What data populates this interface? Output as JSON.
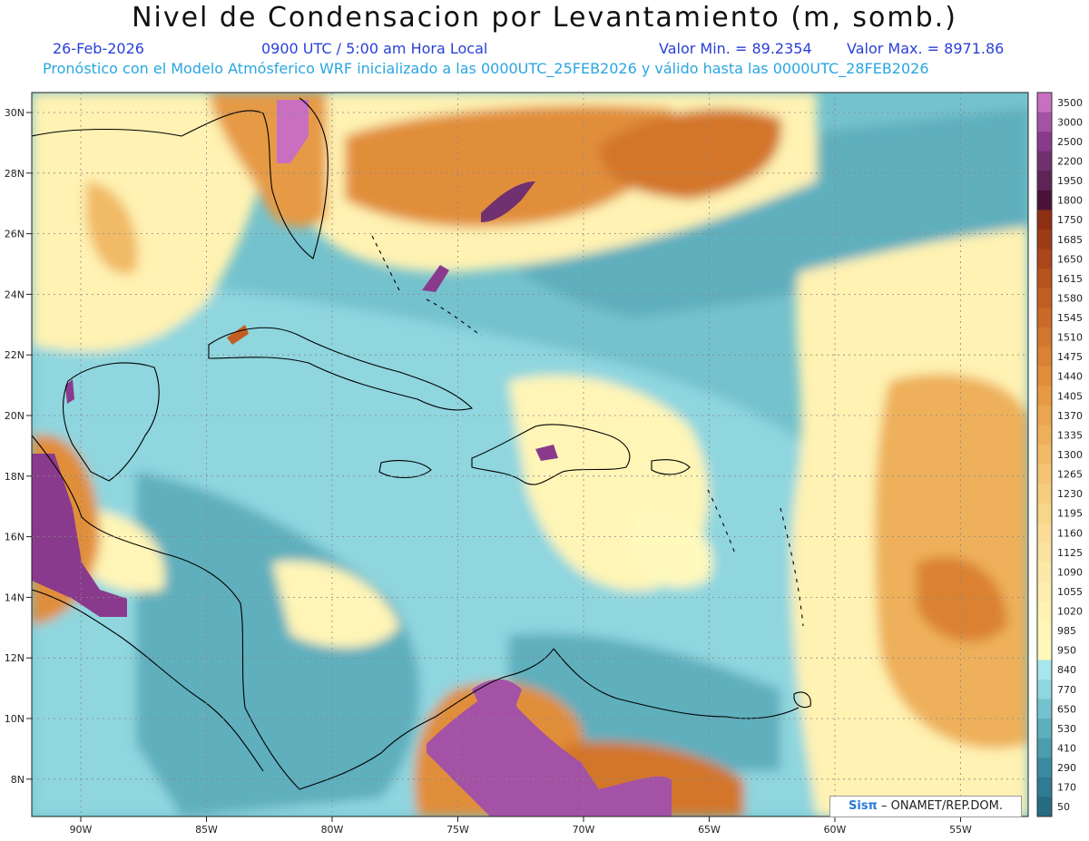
{
  "header": {
    "title": "Nivel de Condensacion por Levantamiento (m, somb.)",
    "date": "26-Feb-2026",
    "time": "0900 UTC / 5:00 am Hora Local",
    "min": "Valor Min. = 89.2354",
    "max": "Valor Max. = 8971.86",
    "forecast": "Pronóstico con el Modelo Atmósferico WRF inicializado a las 0000UTC_25FEB2026 y válido hasta las  0000UTC_28FEB2026"
  },
  "branding": {
    "logo": "Sisπ",
    "text": " – ONAMET/REP.DOM."
  },
  "map": {
    "lon_ticks": [
      "90W",
      "85W",
      "80W",
      "75W",
      "70W",
      "65W",
      "60W",
      "55W"
    ],
    "lat_ticks": [
      "30N",
      "28N",
      "26N",
      "24N",
      "22N",
      "20N",
      "18N",
      "16N",
      "14N",
      "12N",
      "10N",
      "8N"
    ]
  },
  "colorbar": {
    "labels": [
      "3500",
      "3000",
      "2500",
      "2200",
      "1950",
      "1800",
      "1750",
      "1685",
      "1650",
      "1615",
      "1580",
      "1545",
      "1510",
      "1475",
      "1440",
      "1405",
      "1370",
      "1335",
      "1300",
      "1265",
      "1230",
      "1195",
      "1160",
      "1125",
      "1090",
      "1055",
      "1020",
      "985",
      "950",
      "840",
      "770",
      "650",
      "530",
      "410",
      "290",
      "170",
      "50"
    ],
    "colors": [
      "#c86fc0",
      "#a452a6",
      "#8a3a8c",
      "#71306f",
      "#5e2455",
      "#4a1236",
      "#8e2f14",
      "#9e3a16",
      "#ab461a",
      "#b8521e",
      "#c25e22",
      "#cb6a26",
      "#d3762c",
      "#da8232",
      "#e18e3a",
      "#e69a44",
      "#eaa64e",
      "#eeb05a",
      "#f1ba66",
      "#f4c472",
      "#f6cd7e",
      "#f8d68a",
      "#fadc96",
      "#fbe2a0",
      "#fce8a8",
      "#fdeeb0",
      "#fff2b2",
      "#fff5b6",
      "#fff9bc",
      "#a8e6ee",
      "#8fd6df",
      "#74c2cd",
      "#5eafbd",
      "#4a9dae",
      "#3a8b9f",
      "#2f7b91",
      "#266b82"
    ]
  }
}
